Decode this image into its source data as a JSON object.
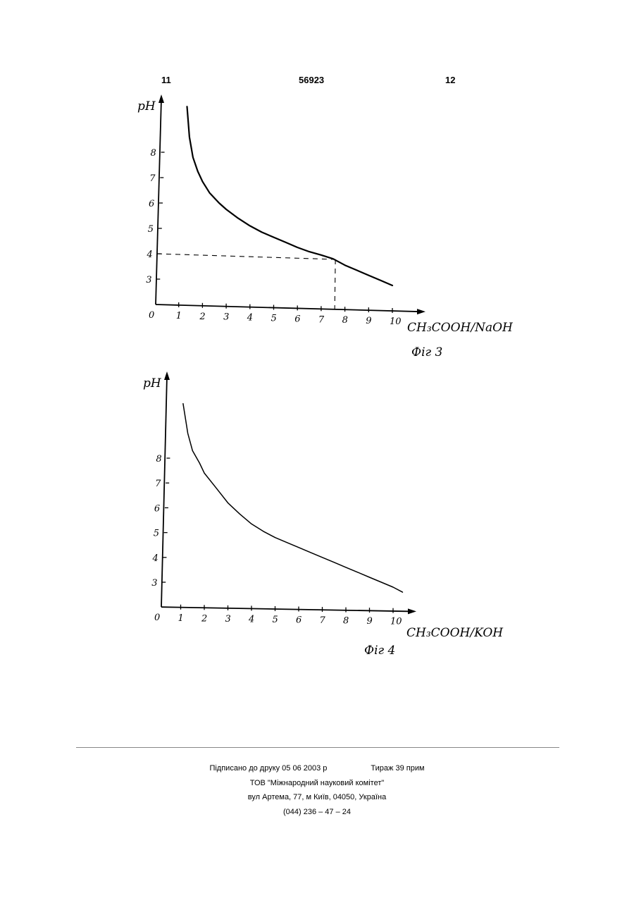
{
  "header": {
    "left_page": "11",
    "patent_number": "56923",
    "right_page": "12"
  },
  "chart_data": [
    {
      "type": "line",
      "caption": "Фіг 3",
      "xlabel": "CH₃COOH/NaOH",
      "ylabel": "pH",
      "xlim": [
        0,
        10.5
      ],
      "ylim": [
        2,
        9
      ],
      "x_ticks": [
        "0",
        "1",
        "2",
        "3",
        "4",
        "5",
        "6",
        "7",
        "8",
        "9",
        "10"
      ],
      "y_ticks": [
        "3",
        "4",
        "5",
        "6",
        "7",
        "8"
      ],
      "grid": false,
      "legend": "none",
      "series": [
        {
          "x": [
            1.35,
            1.45,
            1.6,
            1.8,
            2.0,
            2.3,
            2.7,
            3.0,
            3.5,
            4.0,
            4.5,
            5.0,
            5.5,
            6.0,
            6.5,
            7.0,
            7.5,
            8.0,
            8.5,
            9.0,
            9.5,
            10.0
          ],
          "values": [
            9.8,
            8.6,
            7.8,
            7.25,
            6.85,
            6.4,
            6.0,
            5.75,
            5.4,
            5.1,
            4.85,
            4.65,
            4.45,
            4.25,
            4.08,
            3.95,
            3.8,
            3.55,
            3.35,
            3.15,
            2.95,
            2.75
          ]
        }
      ],
      "annotation": {
        "style": "dashed",
        "x": 7.6,
        "y": 4.0
      }
    },
    {
      "type": "line",
      "caption": "Фіг 4",
      "xlabel": "CH₃COOH/KOH",
      "ylabel": "pH",
      "xlim": [
        0,
        10.5
      ],
      "ylim": [
        2,
        9
      ],
      "x_ticks": [
        "0",
        "1",
        "2",
        "3",
        "4",
        "5",
        "6",
        "7",
        "8",
        "9",
        "10"
      ],
      "y_ticks": [
        "3",
        "4",
        "5",
        "6",
        "7",
        "8"
      ],
      "grid": false,
      "legend": "none",
      "series": [
        {
          "x": [
            1.1,
            1.3,
            1.5,
            1.8,
            2.0,
            2.5,
            3.0,
            3.5,
            4.0,
            4.5,
            5.0,
            5.5,
            6.0,
            6.5,
            7.0,
            7.5,
            8.0,
            8.5,
            9.0,
            9.5,
            10.0,
            10.4
          ],
          "values": [
            10.2,
            9.0,
            8.3,
            7.8,
            7.4,
            6.8,
            6.2,
            5.75,
            5.35,
            5.05,
            4.8,
            4.6,
            4.4,
            4.2,
            4.0,
            3.8,
            3.6,
            3.4,
            3.2,
            3.0,
            2.8,
            2.6
          ]
        }
      ]
    }
  ],
  "footer": {
    "signed": "Підписано до друку 05 06 2003 р",
    "circulation": "Тираж 39 прим",
    "organization": "ТОВ \"Міжнародний науковий комітет\"",
    "address": "вул  Артема, 77, м  Київ, 04050, Україна",
    "phone": "(044) 236 – 47 – 24"
  }
}
